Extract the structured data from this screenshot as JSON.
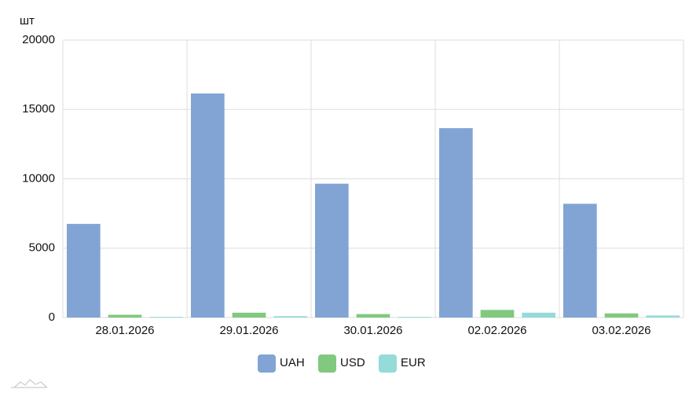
{
  "chart_data": {
    "type": "bar",
    "y_label": "шт",
    "categories": [
      "28.01.2026",
      "29.01.2026",
      "30.01.2026",
      "02.02.2026",
      "03.02.2026"
    ],
    "series": [
      {
        "name": "UAH",
        "color": "#81a4d4",
        "values": [
          6750,
          16150,
          9650,
          13650,
          8200
        ]
      },
      {
        "name": "USD",
        "color": "#80c97e",
        "values": [
          200,
          350,
          250,
          550,
          300
        ]
      },
      {
        "name": "EUR",
        "color": "#94dbd9",
        "values": [
          50,
          100,
          50,
          350,
          150
        ]
      }
    ],
    "ylim": [
      0,
      20000
    ],
    "yticks": [
      0,
      5000,
      10000,
      15000,
      20000
    ],
    "grid": true,
    "legend": "bottom"
  }
}
